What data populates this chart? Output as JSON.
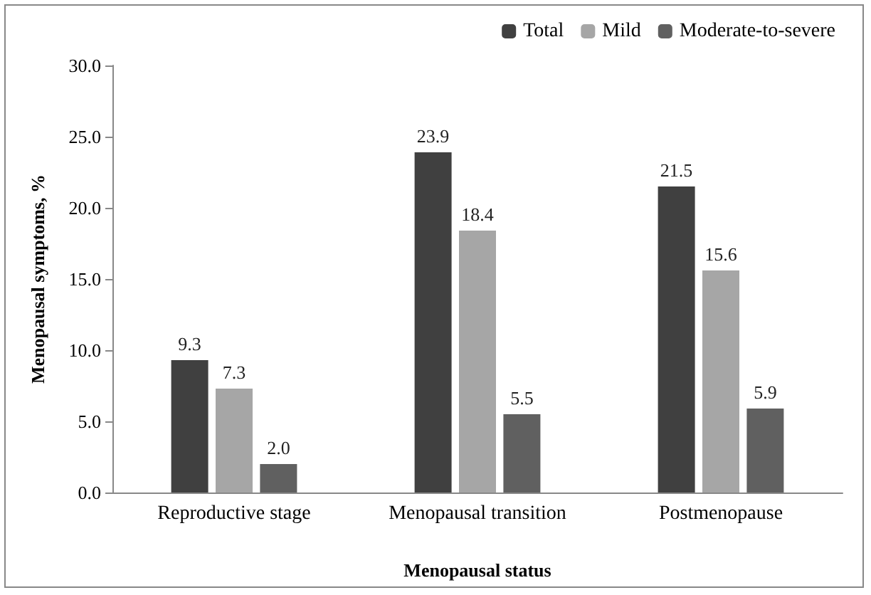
{
  "chart_data": {
    "type": "bar",
    "xlabel": "Menopausal status",
    "ylabel": "Menopausal symptoms, %",
    "categories": [
      "Reproductive stage",
      "Menopausal transition",
      "Postmenopause"
    ],
    "series": [
      {
        "name": "Total",
        "color": "#404040",
        "values": [
          9.3,
          23.9,
          21.5
        ],
        "value_labels": [
          "9.3",
          "23.9",
          "21.5"
        ]
      },
      {
        "name": "Mild",
        "color": "#a6a6a6",
        "values": [
          7.3,
          18.4,
          15.6
        ],
        "value_labels": [
          "7.3",
          "18.4",
          "15.6"
        ]
      },
      {
        "name": "Moderate-to-severe",
        "color": "#606060",
        "values": [
          2.0,
          5.5,
          5.9
        ],
        "value_labels": [
          "2.0",
          "5.5",
          "5.9"
        ]
      }
    ],
    "ylim": [
      0,
      30
    ],
    "yticks": [
      {
        "value": 0,
        "label": "0.0"
      },
      {
        "value": 5,
        "label": "5.0"
      },
      {
        "value": 10,
        "label": "10.0"
      },
      {
        "value": 15,
        "label": "15.0"
      },
      {
        "value": 20,
        "label": "20.0"
      },
      {
        "value": 25,
        "label": "25.0"
      },
      {
        "value": 30,
        "label": "30.0"
      }
    ],
    "legend": "top right",
    "grid": false
  }
}
